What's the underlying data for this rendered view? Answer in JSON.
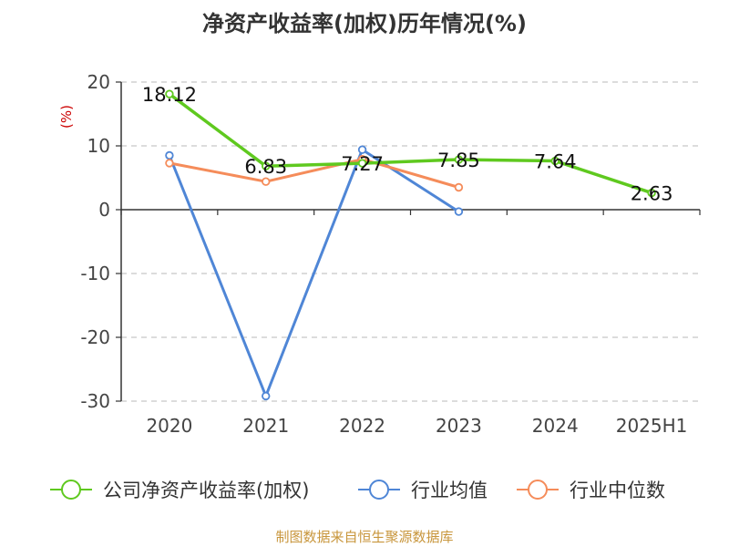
{
  "chart_data": {
    "type": "line",
    "title": "净资产收益率(加权)历年情况(%)",
    "ylabel": "(%)",
    "categories": [
      "2020",
      "2021",
      "2022",
      "2023",
      "2024",
      "2025H1"
    ],
    "ylim": [
      -30,
      20
    ],
    "yticks": [
      20,
      10,
      0,
      -10,
      -20,
      -30
    ],
    "grid": true,
    "legend": "bottom",
    "series": [
      {
        "name": "公司净资产收益率(加权)",
        "color": "#5fc91f",
        "values": [
          18.12,
          6.83,
          7.27,
          7.85,
          7.64,
          2.63
        ],
        "labels": [
          "18.12",
          "6.83",
          "7.27",
          "7.85",
          "7.64",
          "2.63"
        ]
      },
      {
        "name": "行业均值",
        "color": "#4f86d6",
        "values": [
          8.5,
          -29.2,
          9.4,
          -0.3,
          null,
          null
        ]
      },
      {
        "name": "行业中位数",
        "color": "#f58c5a",
        "values": [
          7.3,
          4.4,
          7.9,
          3.5,
          null,
          null
        ]
      }
    ]
  },
  "source": "制图数据来自恒生聚源数据库"
}
